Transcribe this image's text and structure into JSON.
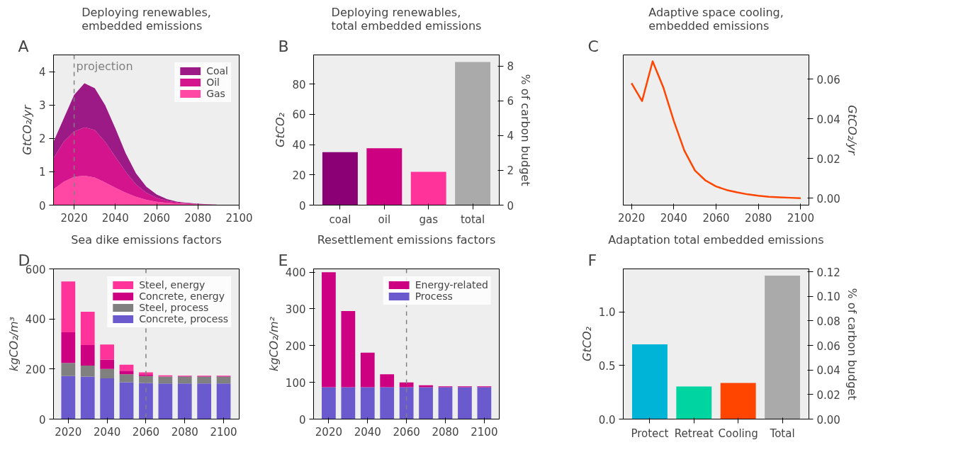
{
  "chart_data": [
    {
      "type": "area",
      "title": "Deploying renewables,\nembedded emissions",
      "ylabel": "GtCO₂/yr",
      "stacked": true,
      "legend": "top right",
      "x": [
        2010,
        2015,
        2020,
        2025,
        2030,
        2035,
        2040,
        2045,
        2050,
        2055,
        2060,
        2065,
        2070,
        2080,
        2090,
        2100
      ],
      "series": [
        {
          "name": "Gas",
          "color": "#ff47a3",
          "values": [
            0.48,
            0.7,
            0.85,
            0.88,
            0.83,
            0.68,
            0.52,
            0.37,
            0.25,
            0.16,
            0.1,
            0.07,
            0.05,
            0.02,
            0.01,
            0
          ]
        },
        {
          "name": "Oil",
          "color": "#d4148c",
          "values": [
            0.92,
            1.2,
            1.35,
            1.45,
            1.42,
            1.22,
            0.93,
            0.63,
            0.37,
            0.21,
            0.12,
            0.06,
            0.03,
            0.01,
            0,
            0
          ]
        },
        {
          "name": "Coal",
          "color": "#9c1a85",
          "values": [
            0.5,
            0.7,
            1.1,
            1.32,
            1.25,
            1.1,
            0.85,
            0.55,
            0.33,
            0.18,
            0.1,
            0.05,
            0.02,
            0.01,
            0,
            0
          ]
        }
      ],
      "xlim": [
        2010,
        2100
      ],
      "xticks": [
        2020,
        2040,
        2060,
        2080,
        2100
      ],
      "ylim": [
        0,
        4.5
      ],
      "yticks": [
        0,
        1,
        2,
        3,
        4
      ],
      "ref_lines": [
        {
          "axis": "x",
          "value": 2020,
          "label": "projection",
          "color": "#808080",
          "line_style": "dashed"
        }
      ],
      "annotations": [
        "A"
      ]
    },
    {
      "type": "bar",
      "title": "Deploying renewables,\ntotal embedded emissions",
      "ylabel": "GtCO₂",
      "y2label": "% of carbon budget",
      "categories": [
        "coal",
        "oil",
        "gas",
        "total"
      ],
      "values": [
        35,
        37.5,
        22,
        94.5
      ],
      "colors": [
        "#8b0075",
        "#cc0080",
        "#ff3399",
        "#aaaaaa"
      ],
      "ylim": [
        0,
        99.2
      ],
      "yticks": [
        0,
        20,
        40,
        60,
        80
      ],
      "y2lim": [
        0,
        8.64
      ],
      "y2ticks": [
        0,
        2,
        4,
        6,
        8
      ],
      "annotations": [
        "B"
      ]
    },
    {
      "type": "line",
      "title": "Adaptive space cooling,\nembedded emissions",
      "y2label": "GtCO₂/yr",
      "x": [
        2020,
        2025,
        2030,
        2035,
        2040,
        2045,
        2050,
        2055,
        2060,
        2065,
        2070,
        2075,
        2080,
        2085,
        2090,
        2095,
        2100
      ],
      "series": [
        {
          "color": "#ff4500",
          "axis": "y2",
          "values": [
            0.058,
            0.049,
            0.069,
            0.056,
            0.039,
            0.024,
            0.014,
            0.009,
            0.006,
            0.0042,
            0.003,
            0.002,
            0.0013,
            0.0008,
            0.0005,
            0.0003,
            0.0001
          ]
        }
      ],
      "xlim": [
        2016.1,
        2103.9
      ],
      "xticks": [
        2020,
        2040,
        2060,
        2080,
        2100
      ],
      "y2lim": [
        -0.0034,
        0.0722
      ],
      "y2ticks": [
        {
          "value": 0,
          "label": "0.00"
        },
        {
          "value": 0.02,
          "label": "0.02"
        },
        {
          "value": 0.04,
          "label": "0.04"
        },
        {
          "value": 0.06,
          "label": "0.06"
        }
      ],
      "annotations": [
        "C"
      ]
    },
    {
      "type": "bar",
      "title": "Sea dike emissions factors",
      "ylabel": "kgCO₂/m³",
      "stacked": true,
      "legend": "top right",
      "x": [
        2020,
        2030,
        2040,
        2050,
        2060,
        2070,
        2080,
        2090,
        2100
      ],
      "series": [
        {
          "name": "Concrete, process",
          "color": "#6a5acd",
          "values": [
            172,
            170,
            163,
            147,
            144,
            142,
            142,
            142,
            142
          ]
        },
        {
          "name": "Steel, process",
          "color": "#808080",
          "values": [
            52,
            44,
            37,
            32,
            28,
            28,
            28,
            28,
            28
          ]
        },
        {
          "name": "Concrete, energy",
          "color": "#cc0080",
          "values": [
            123,
            82,
            38,
            14,
            5,
            null,
            1,
            1,
            1
          ]
        },
        {
          "name": "Steel, energy",
          "color": "#ff3399",
          "values": [
            203,
            133,
            60,
            24,
            10,
            5,
            2,
            2,
            2
          ]
        }
      ],
      "xlim": [
        2012.4,
        2108
      ],
      "xticks": [
        2020,
        2040,
        2060,
        2080,
        2100
      ],
      "ylim": [
        0,
        600
      ],
      "yticks": [
        0,
        200,
        400,
        600
      ],
      "ref_lines": [
        {
          "axis": "x",
          "value": 2060,
          "color": "#808080",
          "line_style": "dashed"
        }
      ],
      "annotations": [
        "D"
      ]
    },
    {
      "type": "bar",
      "title": "Resettlement emissions factors",
      "ylabel": "kgCO₂/m²",
      "stacked": true,
      "legend": "top right",
      "x": [
        2020,
        2030,
        2040,
        2050,
        2060,
        2070,
        2080,
        2090,
        2100
      ],
      "series": [
        {
          "name": "Process",
          "color": "#6a5acd",
          "values": [
            87,
            87,
            87,
            87,
            87,
            87,
            87,
            87,
            87
          ]
        },
        {
          "name": "Energy-related",
          "color": "#cc0080",
          "values": [
            313,
            207,
            94,
            35,
            13,
            5,
            2,
            2,
            2
          ]
        }
      ],
      "xlim": [
        2012.2,
        2107.7
      ],
      "xticks": [
        2020,
        2040,
        2060,
        2080,
        2100
      ],
      "ylim": [
        0,
        409
      ],
      "yticks": [
        0,
        100,
        200,
        300,
        400
      ],
      "ref_lines": [
        {
          "axis": "x",
          "value": 2060,
          "color": "#808080",
          "line_style": "dashed"
        }
      ],
      "annotations": [
        "E"
      ]
    },
    {
      "type": "bar",
      "title": "Adaptation total embedded emissions",
      "ylabel": "GtCO₂",
      "y2label": "% of carbon budget",
      "categories": [
        "Protect",
        "Retreat",
        "Cooling",
        "Total"
      ],
      "values": [
        0.696,
        0.304,
        0.337,
        1.337
      ],
      "colors": [
        "#00b4d8",
        "#00d4a0",
        "#ff4500",
        "#aaaaaa"
      ],
      "ylim": [
        0,
        1.4
      ],
      "yticks": [
        {
          "value": 0,
          "label": "0.0"
        },
        {
          "value": 0.5,
          "label": "0.5"
        },
        {
          "value": 1,
          "label": "1.0"
        }
      ],
      "y2lim": [
        0,
        0.1224
      ],
      "y2ticks": [
        {
          "value": 0,
          "label": "0.00"
        },
        {
          "value": 0.02,
          "label": "0.02"
        },
        {
          "value": 0.04,
          "label": "0.04"
        },
        {
          "value": 0.06,
          "label": "0.06"
        },
        {
          "value": 0.08,
          "label": "0.08"
        },
        {
          "value": 0.1,
          "label": "0.10"
        },
        {
          "value": 0.12,
          "label": "0.12"
        }
      ],
      "annotations": [
        "F"
      ]
    }
  ]
}
